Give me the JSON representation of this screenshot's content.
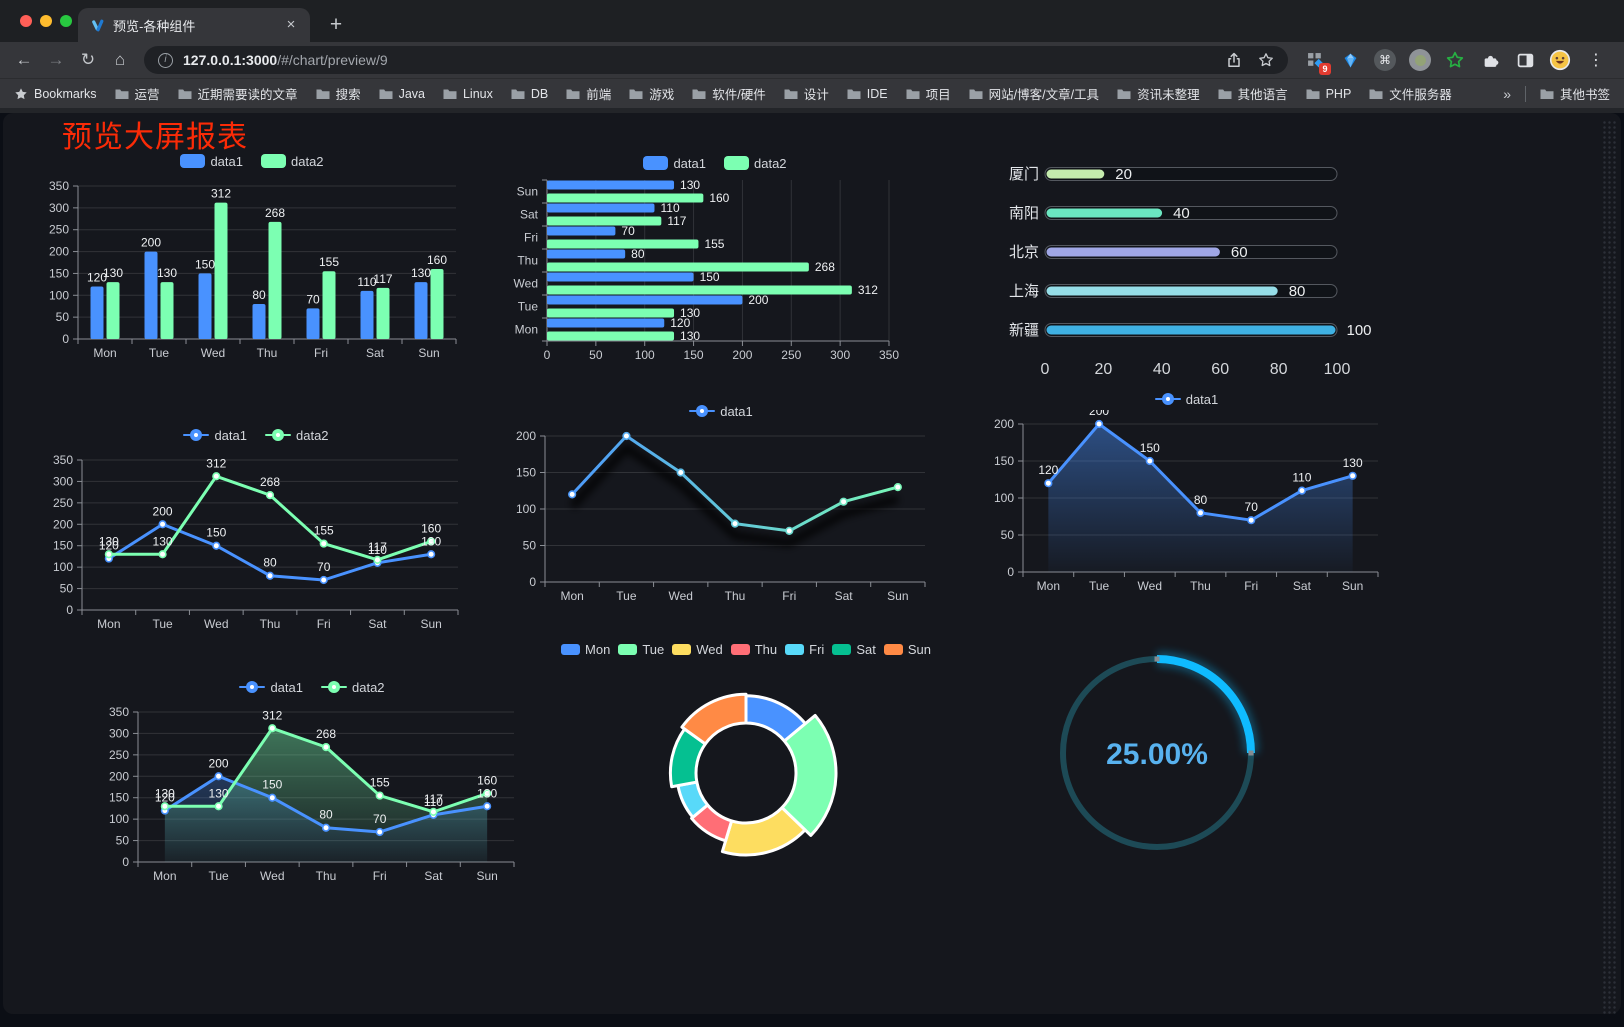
{
  "browser": {
    "tab_title": "预览-各种组件",
    "tab_close": "×",
    "new_tab": "+",
    "url_host": "127.0.0.1:3000",
    "url_path": "/#/chart/preview/9",
    "bookmarks_label": "Bookmarks",
    "bookmarks": [
      "运营",
      "近期需要读的文章",
      "搜索",
      "Java",
      "Linux",
      "DB",
      "前端",
      "游戏",
      "软件/硬件",
      "设计",
      "IDE",
      "项目",
      "网站/博客/文章/工具",
      "资讯未整理",
      "其他语言",
      "PHP",
      "文件服务器"
    ],
    "overflow": "»",
    "other_bookmarks": "其他书签",
    "extension_badge": "9"
  },
  "page": {
    "title": "预览大屏报表",
    "title_color": "#fb2b07"
  },
  "chart_data": [
    {
      "type": "bar",
      "legend": true,
      "labels": true,
      "categories": [
        "Mon",
        "Tue",
        "Wed",
        "Thu",
        "Fri",
        "Sat",
        "Sun"
      ],
      "series": [
        {
          "name": "data1",
          "color": "#4992ff",
          "values": [
            120,
            200,
            150,
            80,
            70,
            110,
            130
          ]
        },
        {
          "name": "data2",
          "color": "#7cffb2",
          "values": [
            130,
            130,
            312,
            268,
            155,
            117,
            160
          ]
        }
      ],
      "ylim": [
        0,
        350
      ],
      "ystep": 50
    },
    {
      "type": "hbar",
      "legend": true,
      "labels": true,
      "categories": [
        "Mon",
        "Tue",
        "Wed",
        "Thu",
        "Fri",
        "Sat",
        "Sun"
      ],
      "series": [
        {
          "name": "data1",
          "color": "#4992ff",
          "values": [
            120,
            200,
            150,
            80,
            70,
            110,
            130
          ]
        },
        {
          "name": "data2",
          "color": "#7cffb2",
          "values": [
            130,
            130,
            312,
            268,
            155,
            117,
            160
          ]
        }
      ],
      "xlim": [
        0,
        350
      ],
      "xstep": 50
    },
    {
      "type": "progress",
      "items": [
        {
          "label": "厦门",
          "value": 20,
          "color": "#c4ebad"
        },
        {
          "label": "南阳",
          "value": 40,
          "color": "#6be6c1"
        },
        {
          "label": "北京",
          "value": 60,
          "color": "#a0a7e6"
        },
        {
          "label": "上海",
          "value": 80,
          "color": "#96dee8"
        },
        {
          "label": "新疆",
          "value": 100,
          "color": "#3fb1e3"
        }
      ],
      "xlim": [
        0,
        100
      ],
      "xticks": [
        0,
        20,
        40,
        60,
        80,
        100
      ]
    },
    {
      "type": "line",
      "legend": true,
      "labels": true,
      "categories": [
        "Mon",
        "Tue",
        "Wed",
        "Thu",
        "Fri",
        "Sat",
        "Sun"
      ],
      "series": [
        {
          "name": "data1",
          "color": "#4992ff",
          "values": [
            120,
            200,
            150,
            80,
            70,
            110,
            130
          ]
        },
        {
          "name": "data2",
          "color": "#7cffb2",
          "values": [
            130,
            130,
            312,
            268,
            155,
            117,
            160
          ]
        }
      ],
      "ylim": [
        0,
        350
      ],
      "ystep": 50
    },
    {
      "type": "line",
      "legend": true,
      "labels": false,
      "categories": [
        "Mon",
        "Tue",
        "Wed",
        "Thu",
        "Fri",
        "Sat",
        "Sun"
      ],
      "series": [
        {
          "name": "data1",
          "color": "#4992ff",
          "gradient": [
            "#4992ff",
            "#7cffb2"
          ],
          "shadow": true,
          "values": [
            120,
            200,
            150,
            80,
            70,
            110,
            130
          ]
        }
      ],
      "ylim": [
        0,
        200
      ],
      "ystep": 50
    },
    {
      "type": "line",
      "legend": true,
      "labels": true,
      "categories": [
        "Mon",
        "Tue",
        "Wed",
        "Thu",
        "Fri",
        "Sat",
        "Sun"
      ],
      "series": [
        {
          "name": "data1",
          "color": "#4992ff",
          "area": true,
          "values": [
            120,
            200,
            150,
            80,
            70,
            110,
            130
          ]
        }
      ],
      "ylim": [
        0,
        200
      ],
      "ystep": 50
    },
    {
      "type": "line",
      "legend": true,
      "labels": true,
      "categories": [
        "Mon",
        "Tue",
        "Wed",
        "Thu",
        "Fri",
        "Sat",
        "Sun"
      ],
      "series": [
        {
          "name": "data1",
          "color": "#4992ff",
          "area": true,
          "values": [
            120,
            200,
            150,
            80,
            70,
            110,
            130
          ]
        },
        {
          "name": "data2",
          "color": "#7cffb2",
          "area": true,
          "values": [
            130,
            130,
            312,
            268,
            155,
            117,
            160
          ]
        }
      ],
      "ylim": [
        0,
        350
      ],
      "ystep": 50
    },
    {
      "type": "donut",
      "legend": true,
      "rose": true,
      "items": [
        {
          "name": "Mon",
          "value": 120,
          "color": "#4992ff"
        },
        {
          "name": "Tue",
          "value": 200,
          "color": "#7cffb2"
        },
        {
          "name": "Wed",
          "value": 150,
          "color": "#fddd60"
        },
        {
          "name": "Thu",
          "value": 80,
          "color": "#ff6e76"
        },
        {
          "name": "Fri",
          "value": 70,
          "color": "#58d9f9"
        },
        {
          "name": "Sat",
          "value": 110,
          "color": "#05c091"
        },
        {
          "name": "Sun",
          "value": 130,
          "color": "#ff8a45"
        }
      ]
    },
    {
      "type": "gauge",
      "percent": 25,
      "value_label": "25.00%",
      "color": "#0fbbff",
      "track_color": "#1d4a56",
      "text_color": "#58b2ef"
    }
  ]
}
